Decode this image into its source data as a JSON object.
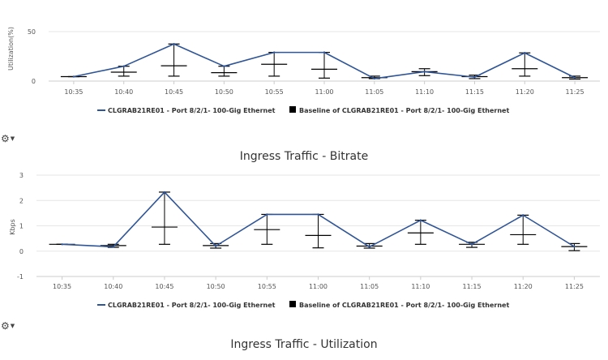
{
  "colors": {
    "series": "#2f5597",
    "baseline": "#000000",
    "axis": "#cccccc",
    "text": "#555555"
  },
  "icons": {
    "chart_menu": "gear-dropdown-icon"
  },
  "chart_data": [
    {
      "type": "line",
      "title": "",
      "xlabel": "",
      "ylabel": "Utilization(%)",
      "ylim": [
        0,
        50
      ],
      "yticks": [
        0,
        50
      ],
      "grid": true,
      "legend_position": "bottom-center",
      "categories": [
        "10:35",
        "10:40",
        "10:45",
        "10:50",
        "10:55",
        "11:00",
        "11:05",
        "11:10",
        "11:15",
        "11:20",
        "11:25"
      ],
      "series": [
        {
          "name": "CLGRAB21RE01 - Port 8/2/1- 100-Gig Ethernet",
          "values": [
            4.5,
            15,
            37.5,
            15,
            29,
            29,
            2.5,
            9.5,
            4,
            28.5,
            3.5
          ]
        }
      ],
      "baseline": {
        "name": "Baseline of CLGRAB21RE01 - Port 8/2/1- 100-Gig Ethernet",
        "mean": [
          4.5,
          9,
          15.5,
          8.5,
          17,
          12,
          3.5,
          9.5,
          4.5,
          12.5,
          3.5
        ],
        "low": [
          4.5,
          5,
          5,
          5,
          5,
          3,
          2.5,
          5.5,
          2.5,
          5,
          2
        ],
        "high": [
          4.5,
          15,
          37.5,
          15,
          29,
          29,
          5,
          12.5,
          6,
          28.5,
          5
        ]
      },
      "heading_below": ""
    },
    {
      "type": "line",
      "title": "Ingress Traffic - Bitrate",
      "xlabel": "",
      "ylabel": "Kbps",
      "ylim": [
        -1,
        3
      ],
      "yticks": [
        -1,
        0,
        1,
        2,
        3
      ],
      "grid": true,
      "legend_position": "bottom-center",
      "categories": [
        "10:35",
        "10:40",
        "10:45",
        "10:50",
        "10:55",
        "11:00",
        "11:05",
        "11:10",
        "11:15",
        "11:20",
        "11:25"
      ],
      "series": [
        {
          "name": "CLGRAB21RE01 - Port 8/2/1- 100-Gig Ethernet",
          "values": [
            0.27,
            0.17,
            2.33,
            0.2,
            1.45,
            1.45,
            0.17,
            1.22,
            0.27,
            1.42,
            0.18
          ]
        }
      ],
      "baseline": {
        "name": "Baseline of CLGRAB21RE01 - Port 8/2/1- 100-Gig Ethernet",
        "mean": [
          0.27,
          0.22,
          0.95,
          0.22,
          0.85,
          0.62,
          0.2,
          0.72,
          0.27,
          0.65,
          0.18
        ],
        "low": [
          0.27,
          0.15,
          0.27,
          0.12,
          0.27,
          0.13,
          0.12,
          0.27,
          0.15,
          0.27,
          0.02
        ],
        "high": [
          0.27,
          0.27,
          2.33,
          0.3,
          1.45,
          1.45,
          0.3,
          1.22,
          0.35,
          1.42,
          0.3
        ]
      },
      "heading_below": "Ingress Traffic - Utilization"
    }
  ]
}
